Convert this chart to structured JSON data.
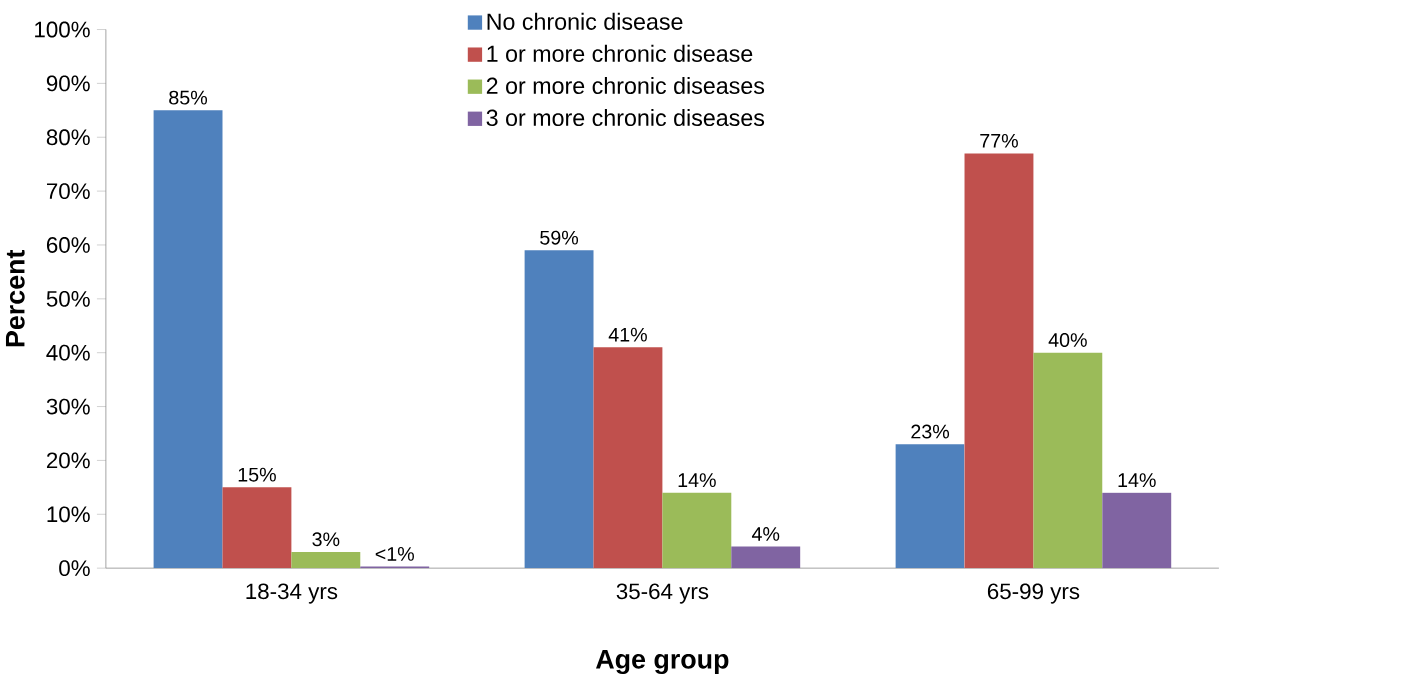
{
  "chart_data": {
    "type": "bar",
    "xlabel": "Age group",
    "ylabel": "Percent",
    "categories": [
      "18-34 yrs",
      "35-64 yrs",
      "65-99 yrs"
    ],
    "ylim": [
      0,
      100
    ],
    "yticks": [
      {
        "value": 0,
        "label": "0%"
      },
      {
        "value": 10,
        "label": "10%"
      },
      {
        "value": 20,
        "label": "20%"
      },
      {
        "value": 30,
        "label": "30%"
      },
      {
        "value": 40,
        "label": "40%"
      },
      {
        "value": 50,
        "label": "50%"
      },
      {
        "value": 60,
        "label": "60%"
      },
      {
        "value": 70,
        "label": "70%"
      },
      {
        "value": 80,
        "label": "80%"
      },
      {
        "value": 90,
        "label": "90%"
      },
      {
        "value": 100,
        "label": "100%"
      }
    ],
    "series": [
      {
        "name": "No chronic disease",
        "color": "#4f81bd",
        "values": [
          85,
          59,
          23
        ],
        "value_labels": [
          "85%",
          "59%",
          "23%"
        ]
      },
      {
        "name": "1 or more chronic disease",
        "color": "#c0504d",
        "values": [
          15,
          41,
          77
        ],
        "value_labels": [
          "15%",
          "41%",
          "77%"
        ]
      },
      {
        "name": "2  or more chronic diseases",
        "color": "#9bbb59",
        "values": [
          3,
          14,
          40
        ],
        "value_labels": [
          "3%",
          "14%",
          "40%"
        ]
      },
      {
        "name": "3  or more chronic diseases",
        "color": "#8064a2",
        "values": [
          0.3,
          4,
          14
        ],
        "value_labels": [
          "<1%",
          "4%",
          "14%"
        ]
      }
    ],
    "legend": "top",
    "grid": false
  }
}
